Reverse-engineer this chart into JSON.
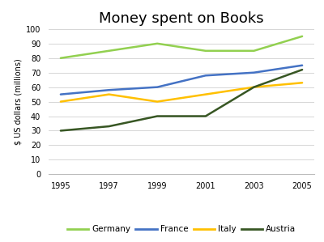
{
  "title": "Money spent on Books",
  "ylabel": "$ US dollars (millions)",
  "years": [
    1995,
    1997,
    1999,
    2001,
    2003,
    2005
  ],
  "series": {
    "Germany": {
      "values": [
        80,
        85,
        90,
        85,
        85,
        95
      ],
      "color": "#92d050",
      "linewidth": 1.8
    },
    "France": {
      "values": [
        55,
        58,
        60,
        68,
        70,
        75
      ],
      "color": "#4472c4",
      "linewidth": 1.8
    },
    "Italy": {
      "values": [
        50,
        55,
        50,
        55,
        60,
        63
      ],
      "color": "#ffc000",
      "linewidth": 1.8
    },
    "Austria": {
      "values": [
        30,
        33,
        40,
        40,
        60,
        72
      ],
      "color": "#375623",
      "linewidth": 1.8
    }
  },
  "ylim": [
    0,
    100
  ],
  "yticks": [
    0,
    10,
    20,
    30,
    40,
    50,
    60,
    70,
    80,
    90,
    100
  ],
  "background_color": "#ffffff",
  "legend_order": [
    "Germany",
    "France",
    "Italy",
    "Austria"
  ],
  "title_fontsize": 13,
  "axis_fontsize": 7,
  "tick_fontsize": 7
}
